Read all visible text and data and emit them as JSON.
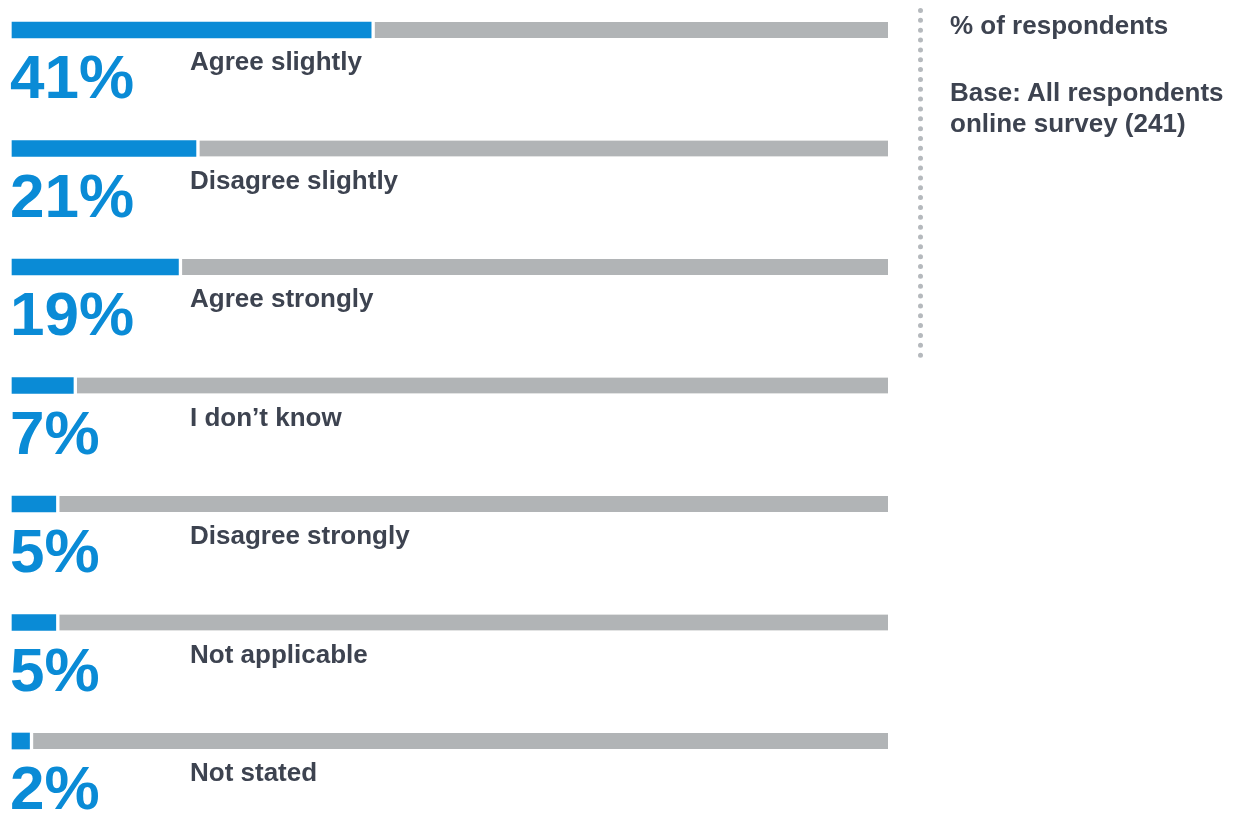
{
  "chart_data": {
    "type": "bar",
    "orientation": "horizontal",
    "stacked": true,
    "categories": [
      "Agree slightly",
      "Disagree slightly",
      "Agree strongly",
      "I don’t know",
      "Disagree strongly",
      "Not applicable",
      "Not stated"
    ],
    "series": [
      {
        "color": "#0a8bd6",
        "values": [
          41,
          21,
          19,
          7,
          5,
          5,
          2
        ],
        "value_labels": [
          "41%",
          "21%",
          "19%",
          "7%",
          "5%",
          "5%",
          "2%"
        ]
      },
      {
        "color": "#b1b4b6",
        "values": [
          59,
          79,
          81,
          93,
          95,
          95,
          98
        ]
      }
    ],
    "xlim": [
      0,
      100
    ],
    "tick_labels": false,
    "legend": false,
    "annotations": [
      "% of respondents",
      "Base: All respondents online survey (241)"
    ]
  }
}
